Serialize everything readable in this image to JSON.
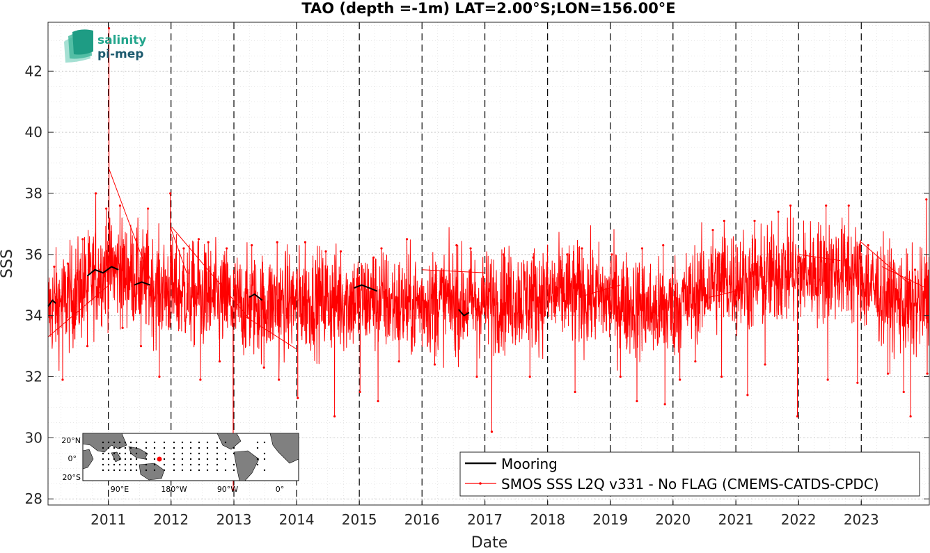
{
  "chart_data": {
    "type": "line",
    "title": "TAO (depth =-1m) LAT=2.00°S;LON=156.00°E",
    "xlabel": "Date",
    "ylabel": "SSS",
    "x_range": [
      "2010-01-15",
      "2024-02-01"
    ],
    "ylim": [
      27.8,
      43.6
    ],
    "y_ticks": [
      28,
      30,
      32,
      34,
      36,
      38,
      40,
      42
    ],
    "x_ticks": [
      "2011",
      "2012",
      "2013",
      "2014",
      "2015",
      "2016",
      "2017",
      "2018",
      "2019",
      "2020",
      "2021",
      "2022",
      "2023"
    ],
    "x_tick_dates": [
      "2011-01-01",
      "2012-01-01",
      "2013-01-01",
      "2014-01-01",
      "2015-01-01",
      "2016-01-01",
      "2017-01-01",
      "2018-01-01",
      "2019-01-01",
      "2020-01-01",
      "2021-01-01",
      "2022-01-01",
      "2023-01-01"
    ],
    "grid": true,
    "legend_position": "bottom-right",
    "series": [
      {
        "name": "Mooring",
        "color": "#000000",
        "segments": [
          [
            [
              "2010-01-15",
              34.3
            ],
            [
              "2010-02-10",
              34.5
            ],
            [
              "2010-03-01",
              34.4
            ]
          ],
          [
            [
              "2010-09-01",
              35.3
            ],
            [
              "2010-10-15",
              35.5
            ],
            [
              "2010-12-01",
              35.4
            ],
            [
              "2011-01-20",
              35.6
            ],
            [
              "2011-03-01",
              35.5
            ]
          ],
          [
            [
              "2011-06-01",
              35.0
            ],
            [
              "2011-07-15",
              35.1
            ],
            [
              "2011-09-01",
              35.0
            ]
          ],
          [
            [
              "2013-04-01",
              34.6
            ],
            [
              "2013-05-01",
              34.7
            ],
            [
              "2013-06-15",
              34.5
            ]
          ],
          [
            [
              "2014-12-01",
              34.9
            ],
            [
              "2015-01-15",
              35.0
            ],
            [
              "2015-03-01",
              34.9
            ],
            [
              "2015-04-15",
              34.8
            ]
          ],
          [
            [
              "2016-08-01",
              34.2
            ],
            [
              "2016-09-01",
              34.0
            ],
            [
              "2016-10-01",
              34.1
            ]
          ]
        ]
      },
      {
        "name": "SMOS SSS L2Q v331 - No FLAG  (CMEMS-CATDS-CPDC)",
        "color": "#ff0000",
        "spikes_high": [
          [
            "2010-02-20",
            35.6
          ],
          [
            "2010-05-10",
            35.7
          ],
          [
            "2010-08-05",
            36.5
          ],
          [
            "2010-10-20",
            38.0
          ],
          [
            "2010-12-20",
            37.5
          ],
          [
            "2011-01-05",
            43.4
          ],
          [
            "2011-03-10",
            37.6
          ],
          [
            "2011-08-20",
            37.5
          ],
          [
            "2011-12-28",
            38.0
          ],
          [
            "2012-03-15",
            36.2
          ],
          [
            "2012-06-10",
            36.5
          ],
          [
            "2012-08-05",
            36.4
          ],
          [
            "2012-11-20",
            36.2
          ],
          [
            "2013-04-15",
            36.3
          ],
          [
            "2013-09-10",
            36.4
          ],
          [
            "2014-02-20",
            36.4
          ],
          [
            "2014-06-20",
            36.1
          ],
          [
            "2014-09-15",
            36.1
          ],
          [
            "2015-03-25",
            35.9
          ],
          [
            "2015-05-10",
            36.2
          ],
          [
            "2015-10-05",
            36.5
          ],
          [
            "2016-07-20",
            36.3
          ],
          [
            "2016-10-10",
            36.2
          ],
          [
            "2017-04-20",
            36.0
          ],
          [
            "2017-10-10",
            35.9
          ],
          [
            "2018-04-25",
            36.0
          ],
          [
            "2018-07-20",
            36.2
          ],
          [
            "2019-01-10",
            36.0
          ],
          [
            "2019-07-05",
            36.2
          ],
          [
            "2019-11-05",
            36.3
          ],
          [
            "2020-08-20",
            36.8
          ],
          [
            "2020-10-25",
            37.1
          ],
          [
            "2021-04-20",
            37.1
          ],
          [
            "2021-09-05",
            37.4
          ],
          [
            "2021-11-15",
            37.6
          ],
          [
            "2022-06-10",
            37.6
          ],
          [
            "2022-10-20",
            37.6
          ],
          [
            "2023-02-10",
            36.3
          ],
          [
            "2023-11-10",
            35.5
          ],
          [
            "2024-01-15",
            37.8
          ]
        ],
        "spikes_low": [
          [
            "2010-04-10",
            31.9
          ],
          [
            "2010-09-01",
            33.0
          ],
          [
            "2011-03-25",
            33.6
          ],
          [
            "2011-07-10",
            33.0
          ],
          [
            "2011-10-25",
            32.0
          ],
          [
            "2012-06-20",
            31.9
          ],
          [
            "2012-10-10",
            32.5
          ],
          [
            "2012-12-28",
            28.3
          ],
          [
            "2013-06-25",
            32.3
          ],
          [
            "2013-09-20",
            31.9
          ],
          [
            "2014-01-08",
            31.3
          ],
          [
            "2014-08-10",
            30.7
          ],
          [
            "2015-01-05",
            31.5
          ],
          [
            "2015-04-20",
            31.2
          ],
          [
            "2015-08-20",
            32.5
          ],
          [
            "2016-03-15",
            32.4
          ],
          [
            "2016-11-15",
            32.0
          ],
          [
            "2017-02-10",
            30.2
          ],
          [
            "2017-09-20",
            32.0
          ],
          [
            "2018-06-10",
            31.5
          ],
          [
            "2019-03-01",
            32.0
          ],
          [
            "2019-06-05",
            31.2
          ],
          [
            "2019-11-15",
            31.1
          ],
          [
            "2020-02-10",
            31.9
          ],
          [
            "2020-05-10",
            32.5
          ],
          [
            "2020-10-10",
            32.0
          ],
          [
            "2021-03-10",
            31.4
          ],
          [
            "2021-06-20",
            32.4
          ],
          [
            "2021-12-25",
            30.7
          ],
          [
            "2022-06-20",
            31.9
          ],
          [
            "2022-12-10",
            31.8
          ],
          [
            "2023-06-05",
            32.1
          ],
          [
            "2023-09-05",
            31.5
          ],
          [
            "2023-10-15",
            30.7
          ],
          [
            "2024-01-20",
            32.1
          ]
        ],
        "gap_lines": [
          [
            [
              "2010-01-15",
              33.3
            ],
            [
              "2011-01-05",
              35.0
            ]
          ],
          [
            [
              "2011-01-05",
              38.8
            ],
            [
              "2011-09-01",
              35.2
            ]
          ],
          [
            [
              "2011-12-28",
              36.9
            ],
            [
              "2012-04-01",
              35.4
            ]
          ],
          [
            [
              "2012-01-05",
              36.9
            ],
            [
              "2013-04-01",
              33.9
            ]
          ],
          [
            [
              "2013-03-01",
              34.0
            ],
            [
              "2014-01-01",
              32.9
            ]
          ],
          [
            [
              "2016-01-01",
              35.5
            ],
            [
              "2017-01-01",
              35.4
            ]
          ],
          [
            [
              "2018-07-01",
              34.6
            ],
            [
              "2019-03-01",
              35.0
            ]
          ],
          [
            [
              "2020-08-01",
              34.6
            ],
            [
              "2021-01-01",
              34.8
            ]
          ],
          [
            [
              "2022-01-01",
              36.0
            ],
            [
              "2022-09-01",
              35.8
            ]
          ],
          [
            [
              "2023-01-01",
              36.4
            ],
            [
              "2023-10-15",
              35.0
            ]
          ],
          [
            [
              "2023-05-01",
              35.6
            ],
            [
              "2024-01-15",
              34.9
            ]
          ]
        ],
        "trend": [
          [
            "2010-01-15",
            34.2
          ],
          [
            "2010-06-01",
            34.6
          ],
          [
            "2010-10-01",
            35.2
          ],
          [
            "2011-01-01",
            35.6
          ],
          [
            "2011-06-01",
            35.3
          ],
          [
            "2011-10-01",
            34.9
          ],
          [
            "2012-04-01",
            34.7
          ],
          [
            "2012-10-01",
            34.5
          ],
          [
            "2013-04-01",
            34.3
          ],
          [
            "2013-10-01",
            34.4
          ],
          [
            "2014-04-01",
            34.5
          ],
          [
            "2014-10-01",
            34.5
          ],
          [
            "2015-04-01",
            34.5
          ],
          [
            "2015-10-01",
            34.3
          ],
          [
            "2016-04-01",
            34.5
          ],
          [
            "2016-10-01",
            34.4
          ],
          [
            "2017-04-01",
            34.5
          ],
          [
            "2017-10-01",
            34.6
          ],
          [
            "2018-04-01",
            34.7
          ],
          [
            "2018-10-01",
            34.6
          ],
          [
            "2019-04-01",
            34.4
          ],
          [
            "2019-10-01",
            34.1
          ],
          [
            "2020-04-01",
            34.5
          ],
          [
            "2020-10-01",
            35.2
          ],
          [
            "2021-04-01",
            35.1
          ],
          [
            "2021-10-01",
            35.4
          ],
          [
            "2022-04-01",
            35.4
          ],
          [
            "2022-10-01",
            35.5
          ],
          [
            "2023-04-01",
            34.8
          ],
          [
            "2023-10-01",
            34.3
          ],
          [
            "2024-02-01",
            34.5
          ]
        ],
        "spread": 1.1
      }
    ],
    "inset_map": {
      "lat_labels": [
        "20°N",
        "0°",
        "20°S"
      ],
      "lon_labels": [
        "90°E",
        "180°W",
        "90°W",
        "0°"
      ],
      "marker_color": "#ff0000",
      "land_color": "#808080"
    }
  },
  "logo": {
    "line1": "salinity",
    "line2": "pi-mep"
  }
}
